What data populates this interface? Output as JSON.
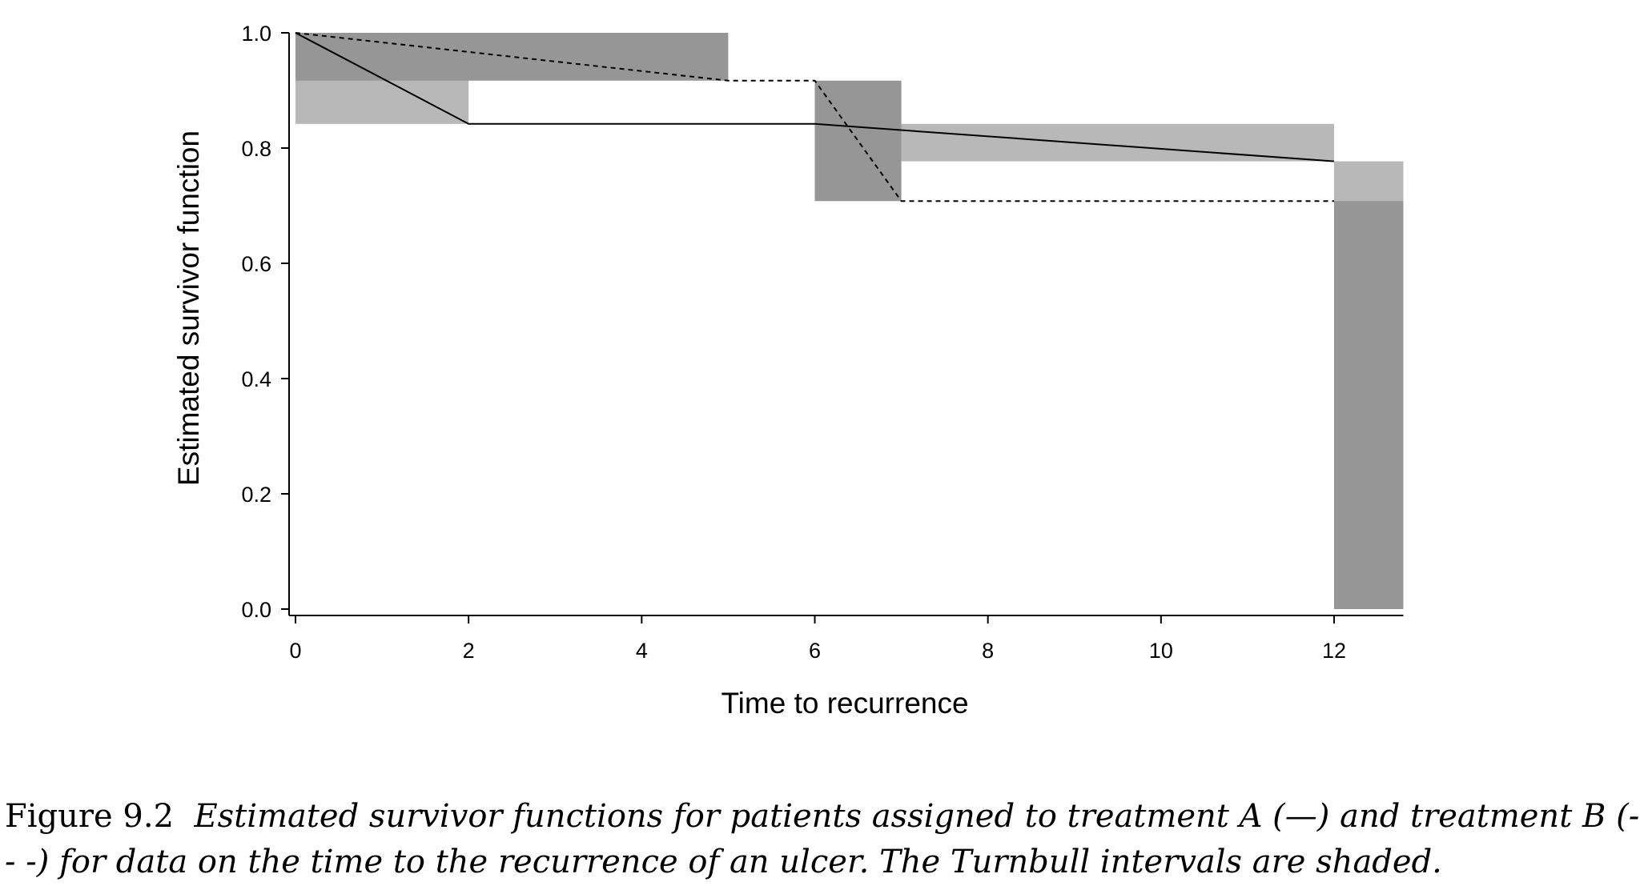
{
  "chart_data": {
    "type": "step",
    "xlabel": "Time to recurrence",
    "ylabel": "Estimated survivor function",
    "xlim": [
      0,
      12.8
    ],
    "ylim": [
      0,
      1.0
    ],
    "x_ticks": [
      0,
      2,
      4,
      6,
      8,
      10,
      12
    ],
    "y_ticks": [
      0.0,
      0.2,
      0.4,
      0.6,
      0.8,
      1.0
    ],
    "grid": false,
    "series": [
      {
        "name": "treatment A",
        "line_style": "solid",
        "points": [
          [
            0,
            1.0
          ],
          [
            2,
            0.842
          ],
          [
            6,
            0.842
          ],
          [
            12,
            0.777
          ]
        ]
      },
      {
        "name": "treatment B",
        "line_style": "dashed",
        "points": [
          [
            0,
            1.0
          ],
          [
            5,
            0.917
          ],
          [
            6,
            0.917
          ],
          [
            7,
            0.708
          ],
          [
            12,
            0.708
          ]
        ]
      }
    ],
    "turnbull_intervals": [
      {
        "series": "treatment A",
        "shade": "light",
        "x0": 0,
        "x1": 2,
        "y_low": 0.842,
        "y_high": 1.0
      },
      {
        "series": "treatment A",
        "shade": "light",
        "x0": 7,
        "x1": 12,
        "y_low": 0.777,
        "y_high": 0.842
      },
      {
        "series": "treatment A",
        "shade": "light",
        "x0": 12,
        "x1": 12.8,
        "y_low": 0.0,
        "y_high": 0.777
      },
      {
        "series": "treatment B",
        "shade": "dark",
        "x0": 0,
        "x1": 5,
        "y_low": 0.917,
        "y_high": 1.0
      },
      {
        "series": "treatment B",
        "shade": "dark",
        "x0": 6,
        "x1": 7,
        "y_low": 0.708,
        "y_high": 0.917
      },
      {
        "series": "treatment B",
        "shade": "dark",
        "x0": 12,
        "x1": 12.8,
        "y_low": 0.0,
        "y_high": 0.708
      }
    ],
    "colors": {
      "light": "#b8b8b8",
      "dark": "#969696",
      "line": "#000000"
    }
  },
  "caption": {
    "label": "Figure 9.2",
    "text": "Estimated survivor functions for patients assigned to treatment A (—) and treatment B (- - -) for data on the time to the recurrence of an ulcer. The Turnbull intervals are shaded."
  }
}
